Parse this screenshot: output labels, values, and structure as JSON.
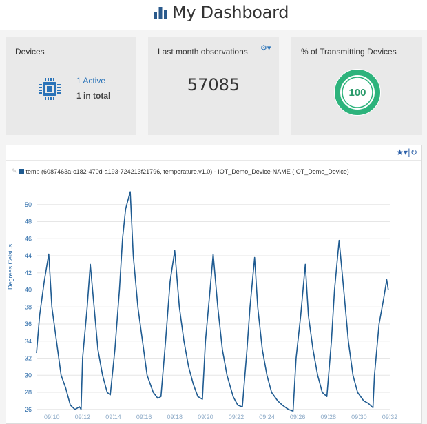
{
  "header": {
    "title": "My Dashboard",
    "logo_icon": "bar-chart-icon"
  },
  "devices_card": {
    "title": "Devices",
    "active_text": "1 Active",
    "total_text": "1 in total",
    "icon": "cpu-chip-icon"
  },
  "observations_card": {
    "title": "Last month observations",
    "value": "57085",
    "settings_icon": "gear-dropdown-icon"
  },
  "transmitting_card": {
    "title": "% of Transmitting Devices",
    "value": "100",
    "percent": 100,
    "ring_color": "#2db37c"
  },
  "panel": {
    "tools_icon": "star-dropdown-refresh-icon"
  },
  "chart_data": {
    "type": "line",
    "legend_entry": "temp (6087463a-c182-470d-a193-724213f21796, temperature.v1.0) - IOT_Demo_Device-NAME (IOT_Demo_Device)",
    "ylabel": "Degrees Celsius",
    "x_ticks": [
      "09:10",
      "09:12",
      "09:14",
      "09:16",
      "09:18",
      "09:20",
      "09:22",
      "09:24",
      "09:26",
      "09:28",
      "09:30",
      "09:32"
    ],
    "y_ticks": [
      26,
      28,
      30,
      32,
      34,
      36,
      38,
      40,
      42,
      44,
      46,
      48,
      50
    ],
    "ylim": [
      25.5,
      52
    ],
    "xlim": [
      "09:09",
      "09:32"
    ],
    "grid": true,
    "color": "#1f5b91",
    "series": [
      {
        "values": [
          [
            "09:09.0",
            32.6
          ],
          [
            "09:09.2",
            37
          ],
          [
            "09:09.5",
            41
          ],
          [
            "09:09.8",
            44.2
          ],
          [
            "09:10.0",
            38
          ],
          [
            "09:10.3",
            34
          ],
          [
            "09:10.6",
            30
          ],
          [
            "09:10.9",
            28.5
          ],
          [
            "09:11.2",
            26.5
          ],
          [
            "09:11.5",
            26
          ],
          [
            "09:11.8",
            26.3
          ],
          [
            "09:11.9",
            26
          ],
          [
            "09:12.0",
            32
          ],
          [
            "09:12.3",
            38
          ],
          [
            "09:12.5",
            43
          ],
          [
            "09:12.7",
            39
          ],
          [
            "09:13.0",
            33
          ],
          [
            "09:13.3",
            30
          ],
          [
            "09:13.6",
            28
          ],
          [
            "09:13.8",
            27.7
          ],
          [
            "09:14.1",
            33
          ],
          [
            "09:14.4",
            40
          ],
          [
            "09:14.6",
            46
          ],
          [
            "09:14.8",
            49.5
          ],
          [
            "09:15.1",
            51.5
          ],
          [
            "09:15.3",
            44
          ],
          [
            "09:15.6",
            38
          ],
          [
            "09:15.9",
            34
          ],
          [
            "09:16.2",
            30
          ],
          [
            "09:16.6",
            28
          ],
          [
            "09:16.9",
            27.3
          ],
          [
            "09:17.1",
            27.5
          ],
          [
            "09:17.4",
            34
          ],
          [
            "09:17.7",
            41
          ],
          [
            "09:18.0",
            44.6
          ],
          [
            "09:18.3",
            38
          ],
          [
            "09:18.6",
            34
          ],
          [
            "09:18.9",
            31
          ],
          [
            "09:19.2",
            29
          ],
          [
            "09:19.5",
            27.5
          ],
          [
            "09:19.8",
            27.2
          ],
          [
            "09:20.0",
            34
          ],
          [
            "09:20.3",
            40
          ],
          [
            "09:20.5",
            44.2
          ],
          [
            "09:20.8",
            38
          ],
          [
            "09:21.1",
            33
          ],
          [
            "09:21.4",
            30
          ],
          [
            "09:21.8",
            27.5
          ],
          [
            "09:22.1",
            26.5
          ],
          [
            "09:22.4",
            26.3
          ],
          [
            "09:22.7",
            33
          ],
          [
            "09:22.9",
            38
          ],
          [
            "09:23.2",
            43.8
          ],
          [
            "09:23.4",
            38
          ],
          [
            "09:23.7",
            33
          ],
          [
            "09:24.0",
            30
          ],
          [
            "09:24.3",
            28
          ],
          [
            "09:24.7",
            27
          ],
          [
            "09:25.0",
            26.5
          ],
          [
            "09:25.4",
            26
          ],
          [
            "09:25.7",
            25.8
          ],
          [
            "09:25.9",
            32
          ],
          [
            "09:26.2",
            37
          ],
          [
            "09:26.5",
            43
          ],
          [
            "09:26.7",
            37
          ],
          [
            "09:27.0",
            33
          ],
          [
            "09:27.3",
            30
          ],
          [
            "09:27.6",
            28
          ],
          [
            "09:27.9",
            27.5
          ],
          [
            "09:28.2",
            34
          ],
          [
            "09:28.4",
            40
          ],
          [
            "09:28.7",
            45.8
          ],
          [
            "09:29.0",
            40
          ],
          [
            "09:29.3",
            34
          ],
          [
            "09:29.6",
            30
          ],
          [
            "09:29.9",
            28
          ],
          [
            "09:30.3",
            27
          ],
          [
            "09:30.6",
            26.7
          ],
          [
            "09:30.9",
            26.2
          ],
          [
            "09:31.0",
            30
          ],
          [
            "09:31.3",
            36
          ],
          [
            "09:31.6",
            39
          ],
          [
            "09:31.8",
            41.2
          ],
          [
            "09:31.9",
            40
          ]
        ]
      }
    ]
  }
}
